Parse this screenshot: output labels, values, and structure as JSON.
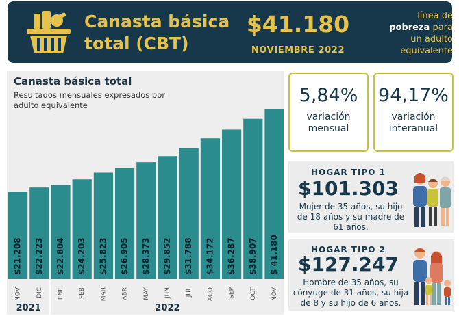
{
  "header": {
    "title_line1": "Canasta básica",
    "title_line2": "total (CBT)",
    "amount": "$41.180",
    "month": "NOVIEMBRE 2022",
    "right_line1": "línea de",
    "right_bold": "pobreza",
    "right_line2_rest": " para",
    "right_line3": "un adulto",
    "right_line4": "equivalente"
  },
  "cards": {
    "mensual": {
      "value": "5,84%",
      "label_line1": "variación",
      "label_line2": "mensual"
    },
    "interanual": {
      "value": "94,17%",
      "label_line1": "variación",
      "label_line2": "interanual"
    }
  },
  "hogar1": {
    "title": "HOGAR TIPO 1",
    "amount": "$101.303",
    "desc_line1": "Mujer de 35 años, su hijo",
    "desc_line2": "de 18 años y su madre de",
    "desc_line3": "61 años."
  },
  "hogar2": {
    "title": "HOGAR TIPO 2",
    "amount": "$127.247",
    "desc_line1": "Hombre de 35 años, su",
    "desc_line2": "cónyuge de 31 años, su hija",
    "desc_line3": "de 8 y su hijo de 6 años."
  },
  "colors": {
    "navy": "#17384a",
    "gold": "#e6c24a",
    "teal": "#2a8c8c",
    "card_border": "#c9c23a"
  },
  "chart_data": {
    "type": "bar",
    "title": "Canasta básica total",
    "subtitle_line1": "Resultados mensuales expresados por",
    "subtitle_line2": "adulto equivalente",
    "categories": [
      "NOV",
      "DIC",
      "ENE",
      "FEB",
      "MAR",
      "ABR",
      "MAY",
      "JUN",
      "JUL",
      "AGO",
      "SEP",
      "OCT",
      "NOV"
    ],
    "values": [
      21208,
      22223,
      22804,
      24203,
      25823,
      26905,
      28373,
      29852,
      31788,
      34172,
      36287,
      38907,
      41180
    ],
    "labels": [
      "$21.208",
      "$22.223",
      "$22.804",
      "$24.203",
      "$25.823",
      "$26.905",
      "$28.373",
      "$29.852",
      "$31.788",
      "$34.172",
      "$36.287",
      "$38.907",
      "$ 41.180"
    ],
    "year_groups": [
      {
        "label": "2021",
        "from": 0,
        "to": 1
      },
      {
        "label": "2022",
        "from": 2,
        "to": 12
      }
    ],
    "ylim": [
      0,
      41180
    ]
  }
}
